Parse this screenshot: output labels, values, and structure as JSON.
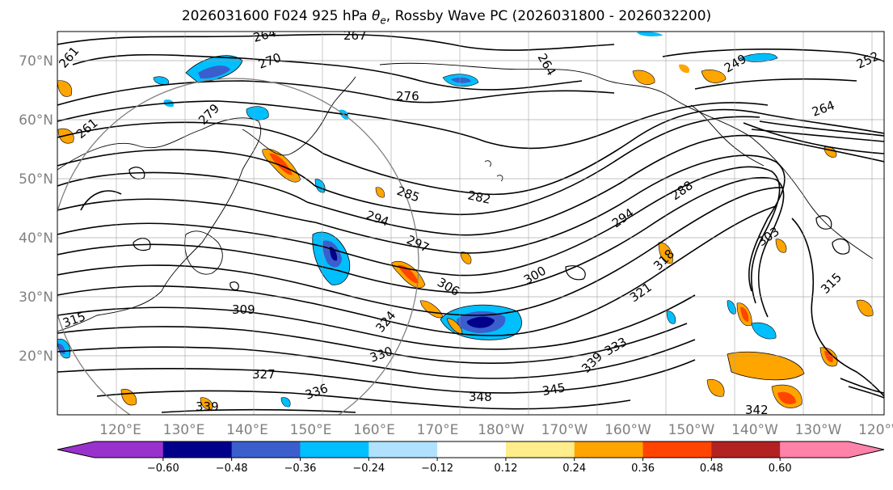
{
  "title": {
    "prefix": "2026031600 F024 925 hPa ",
    "theta_symbol": "θ",
    "theta_sub": "e",
    "suffix": ", Rossby Wave PC (2026031800 - 2026032200)"
  },
  "map": {
    "lat_labels": [
      "70°N",
      "60°N",
      "50°N",
      "40°N",
      "30°N",
      "20°N"
    ],
    "lon_labels": [
      "120°E",
      "130°E",
      "140°E",
      "150°E",
      "160°E",
      "170°E",
      "180°W",
      "170°W",
      "160°W",
      "150°W",
      "140°W",
      "130°W",
      "120°W"
    ],
    "contour_labels": [
      "267",
      "264",
      "270",
      "261",
      "279",
      "276",
      "261",
      "285",
      "282",
      "294",
      "297",
      "306",
      "300",
      "288",
      "294",
      "303",
      "318",
      "309",
      "315",
      "324",
      "330",
      "321",
      "333",
      "327",
      "336",
      "339",
      "345",
      "348",
      "342",
      "339",
      "249",
      "252",
      "264",
      "264",
      "315"
    ]
  },
  "colorbar": {
    "tick_labels": [
      "−0.60",
      "−0.48",
      "−0.36",
      "−0.24",
      "−0.12",
      "0.12",
      "0.24",
      "0.36",
      "0.48",
      "0.60"
    ],
    "colors": [
      "#9932cc",
      "#00008b",
      "#3a5fcd",
      "#00bfff",
      "#b0e2ff",
      "#ffffff",
      "#ffec8b",
      "#ffa500",
      "#ff4500",
      "#b22222",
      "#ff82ab"
    ],
    "extend_min_color": "#9932cc",
    "extend_max_color": "#ff82ab"
  }
}
